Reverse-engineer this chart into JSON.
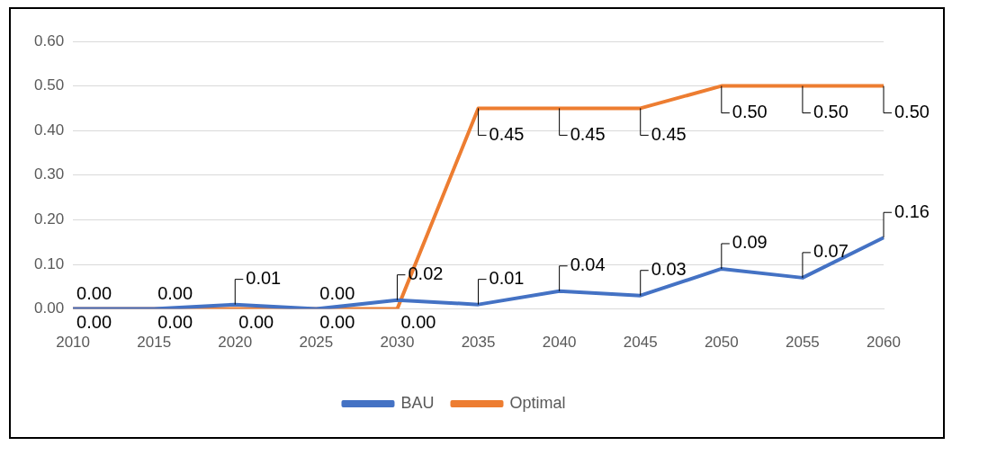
{
  "chart_data": {
    "type": "line",
    "categories": [
      "2010",
      "2015",
      "2020",
      "2025",
      "2030",
      "2035",
      "2040",
      "2045",
      "2050",
      "2055",
      "2060"
    ],
    "series": [
      {
        "name": "BAU",
        "color": "#4472c4",
        "values": [
          0.0,
          0.0,
          0.01,
          0.0,
          0.02,
          0.01,
          0.04,
          0.03,
          0.09,
          0.07,
          0.16
        ],
        "value_labels": [
          "0.00",
          "0.00",
          "0.01",
          "0.00",
          "0.02",
          "0.01",
          "0.04",
          "0.03",
          "0.09",
          "0.07",
          "0.16"
        ]
      },
      {
        "name": "Optimal",
        "color": "#ed7d31",
        "values": [
          0.0,
          0.0,
          0.0,
          0.0,
          0.0,
          0.45,
          0.45,
          0.45,
          0.5,
          0.5,
          0.5
        ],
        "value_labels": [
          "0.00",
          "0.00",
          "0.00",
          "0.00",
          "0.00",
          "0.45",
          "0.45",
          "0.45",
          "0.50",
          "0.50",
          "0.50"
        ]
      }
    ],
    "ylim": [
      0,
      0.6
    ],
    "yticks": [
      "0.00",
      "0.10",
      "0.20",
      "0.30",
      "0.40",
      "0.50",
      "0.60"
    ],
    "grid": "y",
    "legend": "bottom",
    "marker": "none",
    "line_style": "solid"
  }
}
